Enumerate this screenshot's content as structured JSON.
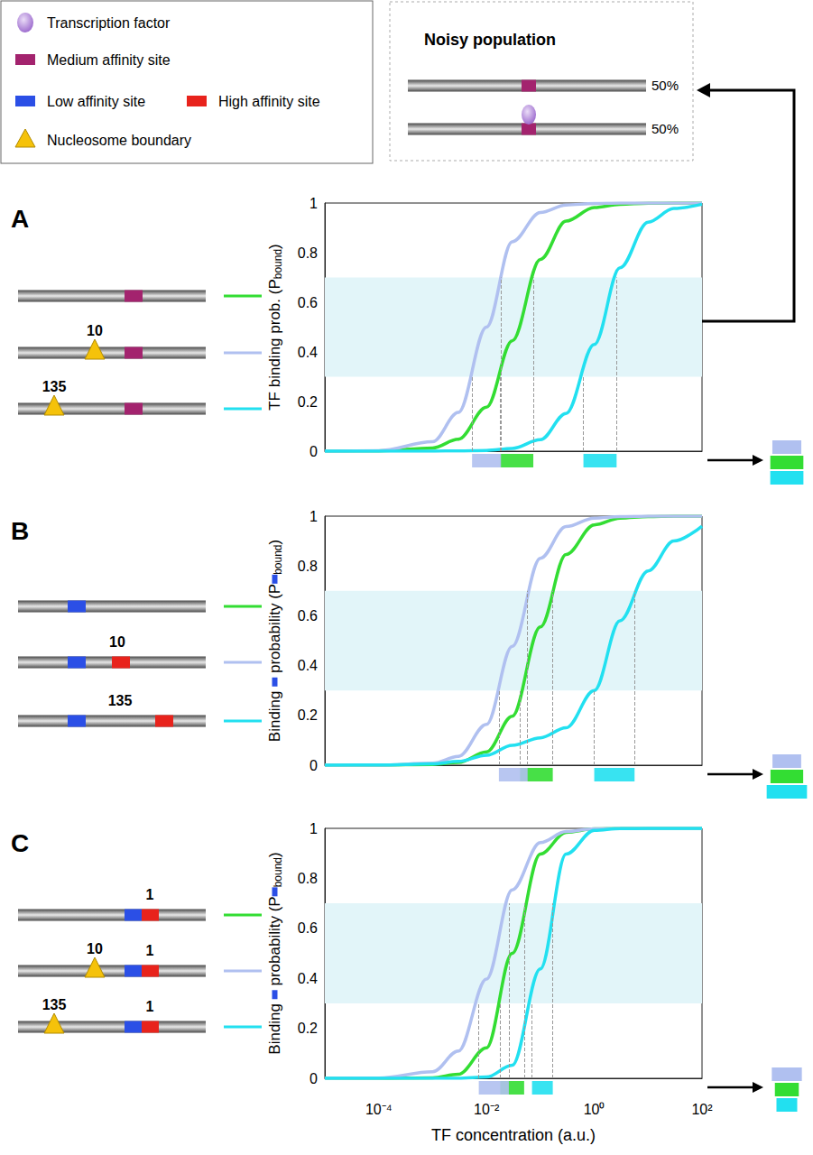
{
  "legend_box": {
    "items": [
      {
        "label": "Transcription factor",
        "marker": "ellipse",
        "color": "#9966cc"
      },
      {
        "label": "Medium affinity site",
        "marker": "rect",
        "color": "#a3236e"
      },
      {
        "label": "Low affinity site",
        "marker": "rect",
        "color": "#2b4fe6"
      },
      {
        "label": "High affinity site",
        "marker": "rect",
        "color": "#e8231c"
      },
      {
        "label": "Nucleosome boundary",
        "marker": "triangle",
        "color": "#f5c20a"
      }
    ]
  },
  "noisy_population": {
    "title": "Noisy population",
    "site": 1,
    "rows": [
      {
        "tf_bound": false,
        "label": "50%"
      },
      {
        "tf_bound": true,
        "label": "50%"
      }
    ]
  },
  "panels": [
    {
      "letter": "A",
      "constructs": [
        {
          "sites": [
            1
          ],
          "boundary": null,
          "spacing": null
        },
        {
          "sites": [
            1
          ],
          "boundary": 10,
          "spacing": null
        },
        {
          "sites": [
            1
          ],
          "boundary": 135,
          "spacing": null
        }
      ]
    },
    {
      "letter": "B",
      "constructs": [
        {
          "sites": [
            2
          ],
          "boundary": null,
          "spacing": null
        },
        {
          "sites": [
            2,
            3
          ],
          "boundary": null,
          "spacing": 10
        },
        {
          "sites": [
            2,
            3
          ],
          "boundary": null,
          "spacing": 135
        }
      ]
    },
    {
      "letter": "C",
      "constructs": [
        {
          "sites": [
            2,
            3
          ],
          "boundary": null,
          "spacing": 1
        },
        {
          "sites": [
            2,
            3
          ],
          "boundary": 10,
          "spacing": 1
        },
        {
          "sites": [
            2,
            3
          ],
          "boundary": 135,
          "spacing": 1
        }
      ]
    }
  ],
  "chart_data": [
    {
      "type": "line",
      "ylabel": [
        "TF binding prob. (P",
        {
          "sub": "bound"
        },
        ")"
      ],
      "log": "x",
      "grid": false,
      "tick_labels": "y",
      "xlim": [
        1e-05,
        100
      ],
      "ylim": [
        0,
        1
      ],
      "yticks": [
        0,
        0.2,
        0.4,
        0.6,
        0.8,
        1
      ],
      "band": [
        0.3,
        0.7
      ],
      "x": [
        1e-05,
        0.0001,
        0.001,
        0.003,
        0.01,
        0.03,
        0.1,
        0.3,
        1,
        3,
        10,
        30,
        100
      ],
      "series": [
        {
          "color": "#33dd33",
          "values": [
            0,
            0.001,
            0.013,
            0.048,
            0.177,
            0.445,
            0.773,
            0.927,
            0.982,
            0.995,
            0.999,
            1,
            1
          ],
          "range": [
            0.018,
            0.074
          ]
        },
        {
          "color": "#b0c0f0",
          "values": [
            0,
            0.002,
            0.038,
            0.156,
            0.5,
            0.844,
            0.962,
            0.992,
            0.998,
            1,
            1,
            1,
            1
          ],
          "range": [
            0.0054,
            0.0186
          ]
        },
        {
          "color": "#22e0f0",
          "values": [
            0,
            0,
            0,
            0.001,
            0.003,
            0.011,
            0.046,
            0.152,
            0.43,
            0.739,
            0.923,
            0.978,
            0.995
          ],
          "range": [
            0.63,
            2.6
          ]
        }
      ]
    },
    {
      "type": "line",
      "ylabel": [
        "Binding ",
        {
          "site": 2
        },
        " probability (P",
        {
          "site": 2
        },
        {
          "sub": "bound"
        },
        ")"
      ],
      "log": "x",
      "grid": false,
      "tick_labels": "y",
      "xlim": [
        1e-05,
        100
      ],
      "ylim": [
        0,
        1
      ],
      "yticks": [
        0,
        0.2,
        0.4,
        0.6,
        0.8,
        1
      ],
      "band": [
        0.3,
        0.7
      ],
      "x": [
        1e-05,
        0.0001,
        0.001,
        0.003,
        0.01,
        0.03,
        0.1,
        0.3,
        1,
        3,
        10,
        30,
        100
      ],
      "series": [
        {
          "color": "#33dd33",
          "values": [
            0,
            0,
            0.003,
            0.011,
            0.053,
            0.197,
            0.555,
            0.846,
            0.965,
            0.992,
            0.998,
            1,
            1
          ],
          "range": [
            0.042,
            0.17
          ]
        },
        {
          "color": "#b0c0f0",
          "values": [
            0,
            0,
            0.008,
            0.035,
            0.164,
            0.477,
            0.831,
            0.958,
            0.992,
            0.998,
            1,
            1,
            1
          ],
          "range": [
            0.017,
            0.058
          ]
        },
        {
          "color": "#22e0f0",
          "values": [
            0,
            0.001,
            0.005,
            0.015,
            0.04,
            0.08,
            0.11,
            0.15,
            0.3,
            0.58,
            0.78,
            0.9,
            0.96
          ],
          "range": [
            1,
            5.6
          ]
        }
      ]
    },
    {
      "type": "line",
      "ylabel": [
        "Binding ",
        {
          "site": 2
        },
        " probability (P",
        {
          "site": 2
        },
        {
          "sub": "bound"
        },
        ")"
      ],
      "xlabel": "TF concentration (a.u.)",
      "log": "x",
      "grid": false,
      "tick_labels": true,
      "xlim": [
        1e-05,
        100
      ],
      "xticks": [
        {
          "value": 0.0001,
          "label": "10⁻⁴"
        },
        {
          "value": 0.01,
          "label": "10⁻²"
        },
        {
          "value": 1,
          "label": "10⁰"
        },
        {
          "value": 100,
          "label": "10²"
        }
      ],
      "ylim": [
        0,
        1
      ],
      "yticks": [
        0,
        0.2,
        0.4,
        0.6,
        0.8,
        1
      ],
      "band": [
        0.3,
        0.7
      ],
      "x": [
        1e-05,
        0.0001,
        0.001,
        0.003,
        0.01,
        0.03,
        0.1,
        0.3,
        1,
        3,
        10,
        30,
        100
      ],
      "series": [
        {
          "color": "#33dd33",
          "values": [
            0,
            0,
            0.002,
            0.016,
            0.122,
            0.5,
            0.897,
            0.984,
            0.998,
            1,
            1,
            1,
            1
          ],
          "range": [
            0.018,
            0.05
          ]
        },
        {
          "color": "#b0c0f0",
          "values": [
            0,
            0.001,
            0.026,
            0.109,
            0.397,
            0.754,
            0.943,
            0.987,
            0.998,
            1,
            1,
            1,
            1
          ],
          "range": [
            0.0072,
            0.026
          ]
        },
        {
          "color": "#22e0f0",
          "values": [
            0,
            0,
            0,
            0,
            0.005,
            0.052,
            0.438,
            0.897,
            0.992,
            0.999,
            1,
            1,
            1
          ],
          "range": [
            0.07,
            0.17
          ]
        }
      ]
    }
  ]
}
